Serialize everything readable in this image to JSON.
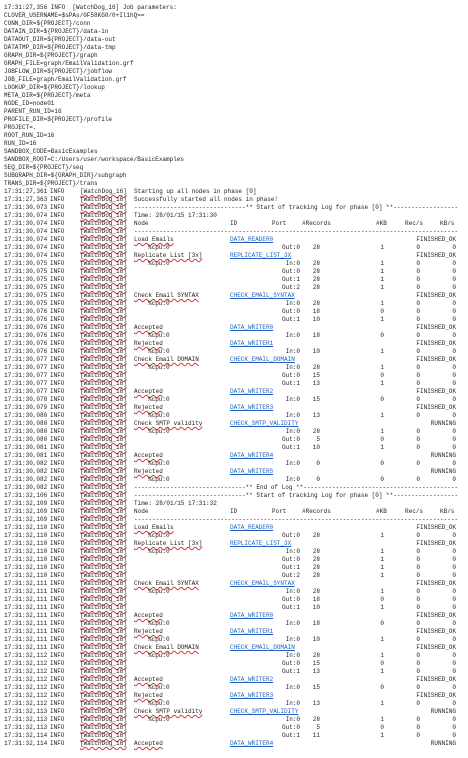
{
  "log": [
    {
      "text": "17:31:27,356 INFO  [WatchDog_16] Job parameters:"
    },
    {
      "text": "CLOVER_USERNAME=$sPAs/0F58KG0/0+Il1hQ=="
    },
    {
      "text": "CONN_DIR=${PROJECT}/conn"
    },
    {
      "text": "DATAIN_DIR=${PROJECT}/data-in"
    },
    {
      "text": "DATAOUT_DIR=${PROJECT}/data-out"
    },
    {
      "text": "DATATMP_DIR=${PROJECT}/data-tmp"
    },
    {
      "text": "GRAPH_DIR=${PROJECT}/graph"
    },
    {
      "text": "GRAPH_FILE=graph/EmailValidation.grf"
    },
    {
      "text": "JOBFLOW_DIR=${PROJECT}/jobflow"
    },
    {
      "text": "JOB_FILE=graph/EmailValidation.grf"
    },
    {
      "text": "LOOKUP_DIR=${PROJECT}/lookup"
    },
    {
      "text": "META_DIR=${PROJECT}/meta"
    },
    {
      "text": "NODE_ID=node01"
    },
    {
      "text": "PARENT_RUN_ID=16"
    },
    {
      "text": "PROFILE_DIR=${PROJECT}/profile"
    },
    {
      "text": "PROJECT=."
    },
    {
      "text": "ROOT_RUN_ID=16"
    },
    {
      "text": "RUN_ID=16"
    },
    {
      "text": "SANDBOX_CODE=BasicExamples"
    },
    {
      "text": "SANDBOX_ROOT=C:/Users/user/workspace/BasicExamples"
    },
    {
      "text": "SEQ_DIR=${PROJECT}/seq"
    },
    {
      "text": "SUBGRAPH_DIR=${GRAPH_DIR}/subgraph"
    },
    {
      "text": "TRANS_DIR=${PROJECT}/trans"
    },
    {
      "ts": "17:31:27,361",
      "level": "INFO",
      "thread": "[WatchDog_16]",
      "message": "Starting up all nodes in phase [0]"
    },
    {
      "ts": "17:31:27,363",
      "level": "INFO",
      "thread": "[WatchDog_16]",
      "message": "Successfully started all nodes in phase!"
    },
    {
      "ts": "17:31:30,073",
      "level": "INFO",
      "thread": "[WatchDog_16]",
      "message": "-------------------------------** Start of tracking Log for phase [0] **------------------"
    },
    {
      "ts": "17:31:30,074",
      "level": "INFO",
      "thread": "[WatchDog_16]",
      "message": "Time: 28/01/15 17:31:30"
    },
    {
      "ts": "17:31:30,074",
      "level": "INFO",
      "thread": "[WatchDog_16]",
      "header": [
        "Node",
        "ID",
        "Port",
        "#Records",
        "#KB",
        "Rec/s",
        "KB/s"
      ]
    },
    {
      "ts": "17:31:30,074",
      "level": "INFO",
      "thread": "[WatchDog_16]",
      "message": "------------------------------------------------------------------------------------------"
    },
    {
      "ts": "17:31:30,074",
      "level": "INFO",
      "thread": "[WatchDog_16]",
      "node": "Load Emails",
      "id": "DATA_READER0",
      "status": "FINISHED_OK"
    },
    {
      "ts": "17:31:30,074",
      "level": "INFO",
      "thread": "[WatchDog_16]",
      "cpu": "%cpu:0",
      "port": "Out:0",
      "records": 28,
      "kb": 1,
      "recs": 0,
      "kbs": 0
    },
    {
      "ts": "17:31:30,074",
      "level": "INFO",
      "thread": "[WatchDog_16]",
      "node": "Replicate List [3x]",
      "id": "REPLICATE_LIST_3X",
      "status": "FINISHED_OK"
    },
    {
      "ts": "17:31:30,075",
      "level": "INFO",
      "thread": "[WatchDog_16]",
      "cpu": "%cpu:0",
      "port": "In:0",
      "records": 28,
      "kb": 1,
      "recs": 0,
      "kbs": 0
    },
    {
      "ts": "17:31:30,075",
      "level": "INFO",
      "thread": "[WatchDog_16]",
      "port": "Out:0",
      "records": 28,
      "kb": 1,
      "recs": 0,
      "kbs": 0
    },
    {
      "ts": "17:31:30,075",
      "level": "INFO",
      "thread": "[WatchDog_16]",
      "port": "Out:1",
      "records": 28,
      "kb": 1,
      "recs": 0,
      "kbs": 0
    },
    {
      "ts": "17:31:30,075",
      "level": "INFO",
      "thread": "[WatchDog_16]",
      "port": "Out:2",
      "records": 28,
      "kb": 1,
      "recs": 0,
      "kbs": 0
    },
    {
      "ts": "17:31:30,075",
      "level": "INFO",
      "thread": "[WatchDog_16]",
      "node": "Check Email SYNTAX",
      "id": "CHECK_EMAIL_SYNTAX",
      "status": "FINISHED_OK"
    },
    {
      "ts": "17:31:30,075",
      "level": "INFO",
      "thread": "[WatchDog_16]",
      "cpu": "%cpu:0",
      "port": "In:0",
      "records": 28,
      "kb": 1,
      "recs": 0,
      "kbs": 0
    },
    {
      "ts": "17:31:30,076",
      "level": "INFO",
      "thread": "[WatchDog_16]",
      "port": "Out:0",
      "records": 18,
      "kb": 0,
      "recs": 0,
      "kbs": 0
    },
    {
      "ts": "17:31:30,076",
      "level": "INFO",
      "thread": "[WatchDog_16]",
      "port": "Out:1",
      "records": 10,
      "kb": 1,
      "recs": 0,
      "kbs": 0
    },
    {
      "ts": "17:31:30,076",
      "level": "INFO",
      "thread": "[WatchDog_16]",
      "node": "Accepted",
      "id": "DATA_WRITER0",
      "status": "FINISHED_OK"
    },
    {
      "ts": "17:31:30,076",
      "level": "INFO",
      "thread": "[WatchDog_16]",
      "cpu": "%cpu:0",
      "port": "In:0",
      "records": 18,
      "kb": 0,
      "recs": 0,
      "kbs": 0
    },
    {
      "ts": "17:31:30,076",
      "level": "INFO",
      "thread": "[WatchDog_16]",
      "node": "Rejected",
      "id": "DATA_WRITER1",
      "status": "FINISHED_OK"
    },
    {
      "ts": "17:31:30,076",
      "level": "INFO",
      "thread": "[WatchDog_16]",
      "cpu": "%cpu:0",
      "port": "In:0",
      "records": 10,
      "kb": 1,
      "recs": 0,
      "kbs": 0
    },
    {
      "ts": "17:31:30,077",
      "level": "INFO",
      "thread": "[WatchDog_16]",
      "node": "Check Email DOMAIN",
      "id": "CHECK_EMAIL_DOMAIN",
      "status": "FINISHED_OK"
    },
    {
      "ts": "17:31:30,077",
      "level": "INFO",
      "thread": "[WatchDog_16]",
      "cpu": "%cpu:0",
      "port": "In:0",
      "records": 28,
      "kb": 1,
      "recs": 0,
      "kbs": 0
    },
    {
      "ts": "17:31:30,077",
      "level": "INFO",
      "thread": "[WatchDog_16]",
      "port": "Out:0",
      "records": 15,
      "kb": 0,
      "recs": 0,
      "kbs": 0
    },
    {
      "ts": "17:31:30,077",
      "level": "INFO",
      "thread": "[WatchDog_16]",
      "port": "Out:1",
      "records": 13,
      "kb": 1,
      "recs": 0,
      "kbs": 0
    },
    {
      "ts": "17:31:30,077",
      "level": "INFO",
      "thread": "[WatchDog_16]",
      "node": "Accepted",
      "id": "DATA_WRITER2",
      "status": "FINISHED_OK"
    },
    {
      "ts": "17:31:30,078",
      "level": "INFO",
      "thread": "[WatchDog_16]",
      "cpu": "%cpu:0",
      "port": "In:0",
      "records": 15,
      "kb": 0,
      "recs": 0,
      "kbs": 0
    },
    {
      "ts": "17:31:30,079",
      "level": "INFO",
      "thread": "[WatchDog_16]",
      "node": "Rejected",
      "id": "DATA_WRITER3",
      "status": "FINISHED_OK"
    },
    {
      "ts": "17:31:30,080",
      "level": "INFO",
      "thread": "[WatchDog_16]",
      "cpu": "%cpu:0",
      "port": "In:0",
      "records": 13,
      "kb": 1,
      "recs": 0,
      "kbs": 0
    },
    {
      "ts": "17:31:30,080",
      "level": "INFO",
      "thread": "[WatchDog_16]",
      "node": "Check SMTP validity",
      "id": "CHECK_SMTP_VALIDITY",
      "status": "RUNNING"
    },
    {
      "ts": "17:31:30,080",
      "level": "INFO",
      "thread": "[WatchDog_16]",
      "cpu": "%cpu:0",
      "port": "In:0",
      "records": 28,
      "kb": 1,
      "recs": 0,
      "kbs": 0
    },
    {
      "ts": "17:31:30,080",
      "level": "INFO",
      "thread": "[WatchDog_16]",
      "port": "Out:0",
      "records": 5,
      "kb": 0,
      "recs": 0,
      "kbs": 0
    },
    {
      "ts": "17:31:30,081",
      "level": "INFO",
      "thread": "[WatchDog_16]",
      "port": "Out:1",
      "records": 10,
      "kb": 1,
      "recs": 0,
      "kbs": 0
    },
    {
      "ts": "17:31:30,081",
      "level": "INFO",
      "thread": "[WatchDog_16]",
      "node": "Accepted",
      "id": "DATA_WRITER4",
      "status": "RUNNING"
    },
    {
      "ts": "17:31:30,082",
      "level": "INFO",
      "thread": "[WatchDog_16]",
      "cpu": "%cpu:0",
      "port": "In:0",
      "records": 0,
      "kb": 0,
      "recs": 0,
      "kbs": 0
    },
    {
      "ts": "17:31:30,082",
      "level": "INFO",
      "thread": "[WatchDog_16]",
      "node": "Rejected",
      "id": "DATA_WRITER5",
      "status": "RUNNING"
    },
    {
      "ts": "17:31:30,082",
      "level": "INFO",
      "thread": "[WatchDog_16]",
      "cpu": "%cpu:0",
      "port": "In:0",
      "records": 0,
      "kb": 0,
      "recs": 0,
      "kbs": 0
    },
    {
      "ts": "17:31:30,082",
      "level": "INFO",
      "thread": "[WatchDog_16]",
      "message": "-------------------------------** End of Log **-------------------------------------------"
    },
    {
      "ts": "17:31:32,106",
      "level": "INFO",
      "thread": "[WatchDog_16]",
      "message": "-------------------------------** Start of tracking Log for phase [0] **------------------"
    },
    {
      "ts": "17:31:32,109",
      "level": "INFO",
      "thread": "[WatchDog_16]",
      "message": "Time: 28/01/15 17:31:32"
    },
    {
      "ts": "17:31:32,109",
      "level": "INFO",
      "thread": "[WatchDog_16]",
      "header": [
        "Node",
        "ID",
        "Port",
        "#Records",
        "#KB",
        "Rec/s",
        "KB/s"
      ]
    },
    {
      "ts": "17:31:32,109",
      "level": "INFO",
      "thread": "[WatchDog_16]",
      "message": "------------------------------------------------------------------------------------------"
    },
    {
      "ts": "17:31:32,110",
      "level": "INFO",
      "thread": "[WatchDog_16]",
      "node": "Load Emails",
      "id": "DATA_READER0",
      "status": "FINISHED_OK"
    },
    {
      "ts": "17:31:32,110",
      "level": "INFO",
      "thread": "[WatchDog_16]",
      "cpu": "%cpu:0",
      "port": "Out:0",
      "records": 28,
      "kb": 1,
      "recs": 0,
      "kbs": 0
    },
    {
      "ts": "17:31:32,110",
      "level": "INFO",
      "thread": "[WatchDog_16]",
      "node": "Replicate List [3x]",
      "id": "REPLICATE_LIST_3X",
      "status": "FINISHED_OK"
    },
    {
      "ts": "17:31:32,110",
      "level": "INFO",
      "thread": "[WatchDog_16]",
      "cpu": "%cpu:0",
      "port": "In:0",
      "records": 28,
      "kb": 1,
      "recs": 0,
      "kbs": 0
    },
    {
      "ts": "17:31:32,110",
      "level": "INFO",
      "thread": "[WatchDog_16]",
      "port": "Out:0",
      "records": 28,
      "kb": 1,
      "recs": 0,
      "kbs": 0
    },
    {
      "ts": "17:31:32,110",
      "level": "INFO",
      "thread": "[WatchDog_16]",
      "port": "Out:1",
      "records": 28,
      "kb": 1,
      "recs": 0,
      "kbs": 0
    },
    {
      "ts": "17:31:32,110",
      "level": "INFO",
      "thread": "[WatchDog_16]",
      "port": "Out:2",
      "records": 28,
      "kb": 1,
      "recs": 0,
      "kbs": 0
    },
    {
      "ts": "17:31:32,111",
      "level": "INFO",
      "thread": "[WatchDog_16]",
      "node": "Check Email SYNTAX",
      "id": "CHECK_EMAIL_SYNTAX",
      "status": "FINISHED_OK"
    },
    {
      "ts": "17:31:32,111",
      "level": "INFO",
      "thread": "[WatchDog_16]",
      "cpu": "%cpu:0",
      "port": "In:0",
      "records": 28,
      "kb": 1,
      "recs": 0,
      "kbs": 0
    },
    {
      "ts": "17:31:32,111",
      "level": "INFO",
      "thread": "[WatchDog_16]",
      "port": "Out:0",
      "records": 18,
      "kb": 0,
      "recs": 0,
      "kbs": 0
    },
    {
      "ts": "17:31:32,111",
      "level": "INFO",
      "thread": "[WatchDog_16]",
      "port": "Out:1",
      "records": 10,
      "kb": 1,
      "recs": 0,
      "kbs": 0
    },
    {
      "ts": "17:31:32,111",
      "level": "INFO",
      "thread": "[WatchDog_16]",
      "node": "Accepted",
      "id": "DATA_WRITER0",
      "status": "FINISHED_OK"
    },
    {
      "ts": "17:31:32,111",
      "level": "INFO",
      "thread": "[WatchDog_16]",
      "cpu": "%cpu:0",
      "port": "In:0",
      "records": 18,
      "kb": 0,
      "recs": 0,
      "kbs": 0
    },
    {
      "ts": "17:31:32,111",
      "level": "INFO",
      "thread": "[WatchDog_16]",
      "node": "Rejected",
      "id": "DATA_WRITER1",
      "status": "FINISHED_OK"
    },
    {
      "ts": "17:31:32,111",
      "level": "INFO",
      "thread": "[WatchDog_16]",
      "cpu": "%cpu:0",
      "port": "In:0",
      "records": 10,
      "kb": 1,
      "recs": 0,
      "kbs": 0
    },
    {
      "ts": "17:31:32,111",
      "level": "INFO",
      "thread": "[WatchDog_16]",
      "node": "Check Email DOMAIN",
      "id": "CHECK_EMAIL_DOMAIN",
      "status": "FINISHED_OK"
    },
    {
      "ts": "17:31:32,112",
      "level": "INFO",
      "thread": "[WatchDog_16]",
      "cpu": "%cpu:0",
      "port": "In:0",
      "records": 28,
      "kb": 1,
      "recs": 0,
      "kbs": 0
    },
    {
      "ts": "17:31:32,112",
      "level": "INFO",
      "thread": "[WatchDog_16]",
      "port": "Out:0",
      "records": 15,
      "kb": 0,
      "recs": 0,
      "kbs": 0
    },
    {
      "ts": "17:31:32,112",
      "level": "INFO",
      "thread": "[WatchDog_16]",
      "port": "Out:1",
      "records": 13,
      "kb": 1,
      "recs": 0,
      "kbs": 0
    },
    {
      "ts": "17:31:32,112",
      "level": "INFO",
      "thread": "[WatchDog_16]",
      "node": "Accepted",
      "id": "DATA_WRITER2",
      "status": "FINISHED_OK"
    },
    {
      "ts": "17:31:32,112",
      "level": "INFO",
      "thread": "[WatchDog_16]",
      "cpu": "%cpu:0",
      "port": "In:0",
      "records": 15,
      "kb": 0,
      "recs": 0,
      "kbs": 0
    },
    {
      "ts": "17:31:32,112",
      "level": "INFO",
      "thread": "[WatchDog_16]",
      "node": "Rejected",
      "id": "DATA_WRITER3",
      "status": "FINISHED_OK"
    },
    {
      "ts": "17:31:32,112",
      "level": "INFO",
      "thread": "[WatchDog_16]",
      "cpu": "%cpu:0",
      "port": "In:0",
      "records": 13,
      "kb": 1,
      "recs": 0,
      "kbs": 0
    },
    {
      "ts": "17:31:32,113",
      "level": "INFO",
      "thread": "[WatchDog_16]",
      "node": "Check SMTP validity",
      "id": "CHECK_SMTP_VALIDITY",
      "status": "RUNNING"
    },
    {
      "ts": "17:31:32,113",
      "level": "INFO",
      "thread": "[WatchDog_16]",
      "cpu": "%cpu:0",
      "port": "In:0",
      "records": 28,
      "kb": 1,
      "recs": 0,
      "kbs": 0
    },
    {
      "ts": "17:31:32,113",
      "level": "INFO",
      "thread": "[WatchDog_16]",
      "port": "Out:0",
      "records": 5,
      "kb": 0,
      "recs": 0,
      "kbs": 0
    },
    {
      "ts": "17:31:32,114",
      "level": "INFO",
      "thread": "[WatchDog_16]",
      "port": "Out:1",
      "records": 11,
      "kb": 1,
      "recs": 0,
      "kbs": 0
    },
    {
      "ts": "17:31:32,114",
      "level": "INFO",
      "thread": "[WatchDog_16]",
      "node": "Accepted",
      "id": "DATA_WRITER4",
      "status": "RUNNING"
    }
  ]
}
